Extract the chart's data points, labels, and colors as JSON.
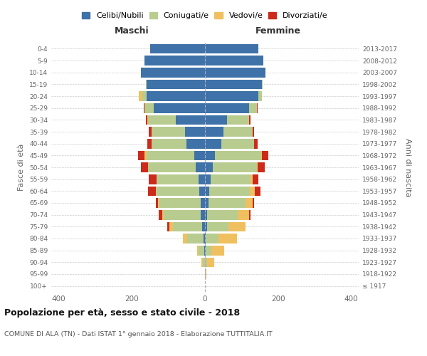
{
  "age_groups": [
    "100+",
    "95-99",
    "90-94",
    "85-89",
    "80-84",
    "75-79",
    "70-74",
    "65-69",
    "60-64",
    "55-59",
    "50-54",
    "45-49",
    "40-44",
    "35-39",
    "30-34",
    "25-29",
    "20-24",
    "15-19",
    "10-14",
    "5-9",
    "0-4"
  ],
  "birth_years": [
    "≤ 1917",
    "1918-1922",
    "1923-1927",
    "1928-1932",
    "1933-1937",
    "1938-1942",
    "1943-1947",
    "1948-1952",
    "1953-1957",
    "1958-1962",
    "1963-1967",
    "1968-1972",
    "1973-1977",
    "1978-1982",
    "1983-1987",
    "1988-1992",
    "1993-1997",
    "1998-2002",
    "2003-2007",
    "2008-2012",
    "2013-2017"
  ],
  "maschi": {
    "celibi": [
      0,
      0,
      0,
      2,
      4,
      8,
      12,
      12,
      15,
      18,
      25,
      30,
      50,
      55,
      80,
      140,
      160,
      160,
      175,
      165,
      150
    ],
    "coniugati": [
      0,
      0,
      5,
      15,
      45,
      80,
      100,
      115,
      120,
      115,
      130,
      130,
      95,
      90,
      75,
      25,
      12,
      2,
      0,
      0,
      0
    ],
    "vedovi": [
      0,
      0,
      5,
      5,
      12,
      10,
      4,
      2,
      0,
      0,
      0,
      5,
      0,
      0,
      2,
      0,
      8,
      0,
      0,
      0,
      0
    ],
    "divorziati": [
      0,
      0,
      0,
      0,
      0,
      5,
      10,
      5,
      20,
      20,
      20,
      18,
      12,
      8,
      5,
      2,
      0,
      0,
      0,
      0,
      0
    ]
  },
  "femmine": {
    "nubili": [
      0,
      0,
      0,
      2,
      2,
      5,
      5,
      10,
      12,
      15,
      22,
      28,
      45,
      50,
      60,
      120,
      145,
      155,
      165,
      160,
      145
    ],
    "coniugate": [
      0,
      2,
      5,
      15,
      35,
      60,
      85,
      100,
      110,
      110,
      120,
      125,
      90,
      80,
      60,
      22,
      10,
      2,
      0,
      0,
      0
    ],
    "vedove": [
      0,
      2,
      20,
      35,
      50,
      45,
      30,
      20,
      15,
      5,
      2,
      2,
      0,
      0,
      0,
      0,
      0,
      0,
      0,
      0,
      0
    ],
    "divorziate": [
      0,
      0,
      0,
      0,
      0,
      0,
      5,
      5,
      15,
      15,
      20,
      18,
      8,
      5,
      5,
      2,
      0,
      0,
      0,
      0,
      0
    ]
  },
  "colors": {
    "celibi": "#3e72a8",
    "coniugati": "#b8cc90",
    "vedovi": "#f0c060",
    "divorziati": "#cc2a1a"
  },
  "xlim": 420,
  "title": "Popolazione per età, sesso e stato civile - 2018",
  "subtitle": "COMUNE DI ALA (TN) - Dati ISTAT 1° gennaio 2018 - Elaborazione TUTTITALIA.IT",
  "ylabel_left": "Fasce di età",
  "ylabel_right": "Anni di nascita",
  "xlabel_maschi": "Maschi",
  "xlabel_femmine": "Femmine",
  "legend_labels": [
    "Celibi/Nubili",
    "Coniugati/e",
    "Vedovi/e",
    "Divorziati/e"
  ]
}
